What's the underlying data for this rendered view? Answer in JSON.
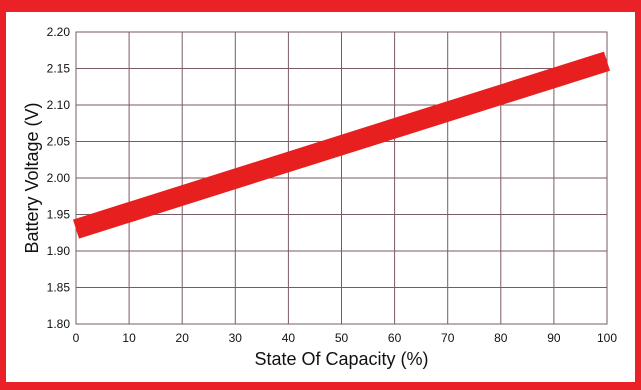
{
  "colors": {
    "frame": "#ea2227",
    "line": "#e81f1f",
    "grid": "#7a5a63"
  },
  "chart_data": {
    "type": "line",
    "xlabel": "State Of Capacity (%)",
    "ylabel": "Battery Voltage (V)",
    "xlim": [
      0,
      100
    ],
    "ylim": [
      1.8,
      2.2
    ],
    "x_ticks": [
      "0",
      "10",
      "20",
      "30",
      "40",
      "50",
      "60",
      "70",
      "80",
      "90",
      "100"
    ],
    "y_ticks": [
      "1.80",
      "1.85",
      "1.90",
      "1.95",
      "2.00",
      "2.05",
      "2.10",
      "2.15",
      "2.20"
    ],
    "grid": true,
    "legend": "none",
    "series": [
      {
        "x": [
          0,
          100
        ],
        "y": [
          1.93,
          2.16
        ]
      }
    ]
  }
}
